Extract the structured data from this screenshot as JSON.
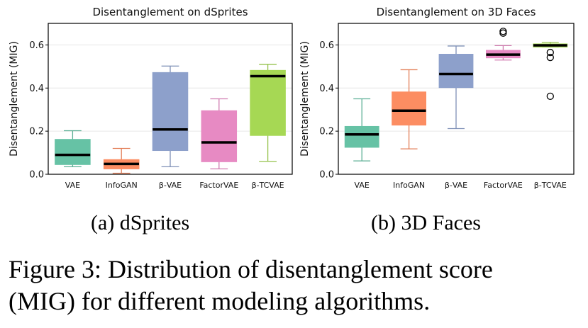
{
  "chart_data": [
    {
      "type": "box",
      "title": "Disentanglement on dSprites",
      "ylabel": "Disentanglement (MIG)",
      "xlabel": "",
      "ylim": [
        0,
        0.7
      ],
      "yticks": [
        "0.0",
        "0.2",
        "0.4",
        "0.6"
      ],
      "grid": "horizontal",
      "categories": [
        "VAE",
        "InfoGAN",
        "β-VAE",
        "FactorVAE",
        "β-TCVAE"
      ],
      "colors": [
        "#66c2a5",
        "#fc8d62",
        "#8da0cb",
        "#e78ac3",
        "#a6d854"
      ],
      "boxes": [
        {
          "whisker_low": 0.035,
          "q1": 0.045,
          "median": 0.09,
          "q3": 0.162,
          "whisker_high": 0.202,
          "outliers": []
        },
        {
          "whisker_low": 0.005,
          "q1": 0.025,
          "median": 0.048,
          "q3": 0.068,
          "whisker_high": 0.12,
          "outliers": []
        },
        {
          "whisker_low": 0.035,
          "q1": 0.11,
          "median": 0.208,
          "q3": 0.472,
          "whisker_high": 0.502,
          "outliers": []
        },
        {
          "whisker_low": 0.025,
          "q1": 0.058,
          "median": 0.148,
          "q3": 0.295,
          "whisker_high": 0.35,
          "outliers": []
        },
        {
          "whisker_low": 0.06,
          "q1": 0.18,
          "median": 0.455,
          "q3": 0.482,
          "whisker_high": 0.51,
          "outliers": []
        }
      ]
    },
    {
      "type": "box",
      "title": "Disentanglement on 3D Faces",
      "ylabel": "Disentanglement (MIG)",
      "xlabel": "",
      "ylim": [
        0,
        0.7
      ],
      "yticks": [
        "0.0",
        "0.2",
        "0.4",
        "0.6"
      ],
      "grid": "horizontal",
      "categories": [
        "VAE",
        "InfoGAN",
        "β-VAE",
        "FactorVAE",
        "β-TCVAE"
      ],
      "colors": [
        "#66c2a5",
        "#fc8d62",
        "#8da0cb",
        "#e78ac3",
        "#a6d854"
      ],
      "boxes": [
        {
          "whisker_low": 0.062,
          "q1": 0.125,
          "median": 0.185,
          "q3": 0.222,
          "whisker_high": 0.35,
          "outliers": []
        },
        {
          "whisker_low": 0.118,
          "q1": 0.228,
          "median": 0.295,
          "q3": 0.382,
          "whisker_high": 0.485,
          "outliers": []
        },
        {
          "whisker_low": 0.212,
          "q1": 0.402,
          "median": 0.465,
          "q3": 0.557,
          "whisker_high": 0.595,
          "outliers": []
        },
        {
          "whisker_low": 0.53,
          "q1": 0.54,
          "median": 0.555,
          "q3": 0.575,
          "whisker_high": 0.597,
          "outliers": [
            0.655,
            0.663
          ]
        },
        {
          "whisker_low": 0.59,
          "q1": 0.59,
          "median": 0.598,
          "q3": 0.605,
          "whisker_high": 0.612,
          "outliers": [
            0.565,
            0.542,
            0.362
          ]
        }
      ]
    }
  ],
  "subcaptions": [
    "(a) dSprites",
    "(b) 3D Faces"
  ],
  "caption": {
    "line1": "Figure 3:  Distribution of disentanglement score",
    "line2": "(MIG) for different modeling algorithms."
  }
}
